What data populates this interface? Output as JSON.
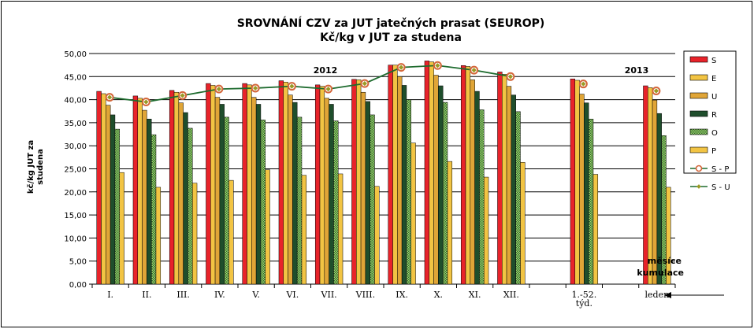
{
  "chart_data": {
    "type": "bar",
    "title": "SROVNÁNÍ  CZV za JUT jatečných prasat (SEUROP)",
    "subtitle": "Kč/kg v JUT za studena",
    "ylabel_lines": [
      "kč/kg  JUT za",
      "studena"
    ],
    "xlabel_lines": [
      "měsíce",
      "kumulace"
    ],
    "ylim": [
      0,
      50
    ],
    "yticks": [
      "0,00",
      "5,00",
      "10,00",
      "15,00",
      "20,00",
      "25,00",
      "30,00",
      "35,00",
      "40,00",
      "45,00",
      "50,00"
    ],
    "grid": true,
    "legend_position": "right",
    "annotations": [
      "2012",
      "2013"
    ],
    "categories": [
      "I.",
      "II.",
      "III.",
      "IV.",
      "V.",
      "VI.",
      "VII.",
      "VIII.",
      "IX.",
      "X.",
      "XI.",
      "XII.",
      "1.-52. týd.",
      "leden"
    ],
    "category_label_lines": [
      [
        "I."
      ],
      [
        "II."
      ],
      [
        "III."
      ],
      [
        "IV."
      ],
      [
        "V."
      ],
      [
        "VI."
      ],
      [
        "VII."
      ],
      [
        "VIII."
      ],
      [
        "IX."
      ],
      [
        "X."
      ],
      [
        "XI."
      ],
      [
        "XII."
      ],
      [
        "1.-52.",
        "týd."
      ],
      [
        "leden"
      ]
    ],
    "series": [
      {
        "name": "S",
        "color": "#e8232a",
        "values": [
          41.8,
          40.8,
          42.0,
          43.5,
          43.5,
          44.1,
          43.2,
          44.4,
          47.5,
          48.4,
          47.4,
          46.0,
          44.5,
          43.0
        ]
      },
      {
        "name": "E",
        "color": "#f2c443",
        "values": [
          41.3,
          40.3,
          41.6,
          43.1,
          43.2,
          43.8,
          42.9,
          44.3,
          47.5,
          48.2,
          47.2,
          45.5,
          44.2,
          42.6
        ]
      },
      {
        "name": "U",
        "color": "#e0a537",
        "values": [
          38.8,
          37.7,
          39.3,
          40.5,
          40.5,
          41.0,
          40.3,
          41.6,
          45.0,
          45.3,
          44.3,
          42.9,
          41.2,
          39.9
        ]
      },
      {
        "name": "R",
        "color": "#1f4e2c",
        "values": [
          36.7,
          35.8,
          37.2,
          39.0,
          39.0,
          39.4,
          39.0,
          39.6,
          43.1,
          43.0,
          41.8,
          41.0,
          39.3,
          37.0
        ]
      },
      {
        "name": "O",
        "color": "#7ec14f",
        "values": [
          33.6,
          32.4,
          33.8,
          36.2,
          35.6,
          36.2,
          35.4,
          36.7,
          40.0,
          39.4,
          37.8,
          37.4,
          35.8,
          32.2
        ]
      },
      {
        "name": "P",
        "color": "#f2c443",
        "values": [
          24.2,
          21.0,
          21.9,
          22.5,
          24.8,
          23.6,
          23.9,
          21.2,
          30.6,
          26.6,
          23.2,
          26.4,
          23.8,
          21.0
        ]
      }
    ],
    "line_series": [
      {
        "name": "S - P",
        "values": [
          40.5,
          39.5,
          40.9,
          42.3,
          42.5,
          42.9,
          42.3,
          43.5,
          47.0,
          47.4,
          46.4,
          45.0,
          43.4,
          41.9
        ]
      },
      {
        "name": "S - U",
        "values": [
          40.5,
          39.5,
          40.9,
          42.3,
          42.5,
          42.9,
          42.3,
          43.5,
          47.0,
          47.4,
          46.4,
          45.0,
          43.4,
          41.9
        ]
      }
    ],
    "line_connected_categories": 12
  }
}
